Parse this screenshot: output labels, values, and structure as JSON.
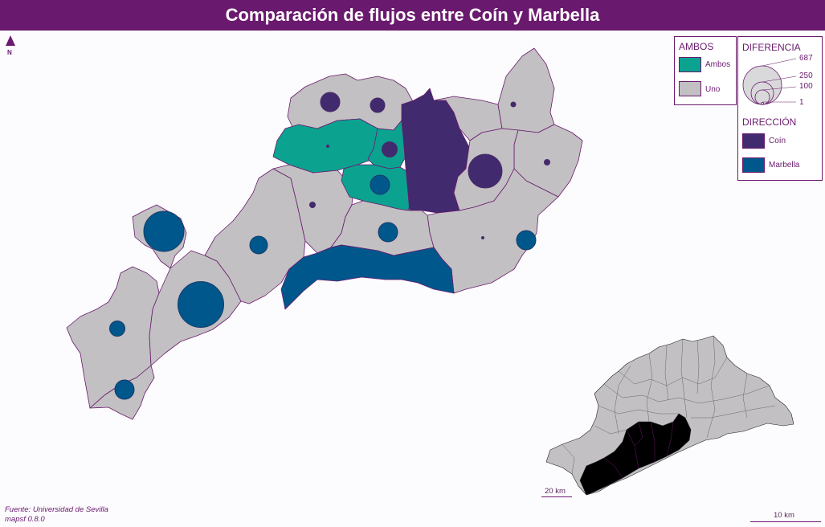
{
  "title": "Comparación de flujos entre Coín y Marbella",
  "north_label": "N",
  "legend_ambos": {
    "title": "AMBOS",
    "items": [
      {
        "label": "Ambos",
        "color": "#0ca290"
      },
      {
        "label": "Uno",
        "color": "#c2c0c3"
      }
    ]
  },
  "legend_diferencia": {
    "title": "DIFERENCIA",
    "values": [
      "687",
      "250",
      "100",
      "1"
    ]
  },
  "legend_direccion": {
    "title": "DIRECCIÓN",
    "items": [
      {
        "label": "Coín",
        "color": "#412a6d"
      },
      {
        "label": "Marbella",
        "color": "#00578c"
      }
    ]
  },
  "source": {
    "line1": "Fuente: Universidad de Sevilla",
    "line2": "mapsf 0.8.0"
  },
  "scale_inset": "20 km",
  "scale_main": "10 km",
  "colors": {
    "title_bg": "#6a1a6e",
    "ambos": "#0ca290",
    "uno": "#c2c0c3",
    "coin": "#412a6d",
    "marbella": "#00578c",
    "border": "#6a1a6e",
    "inset_highlight": "#000000"
  }
}
